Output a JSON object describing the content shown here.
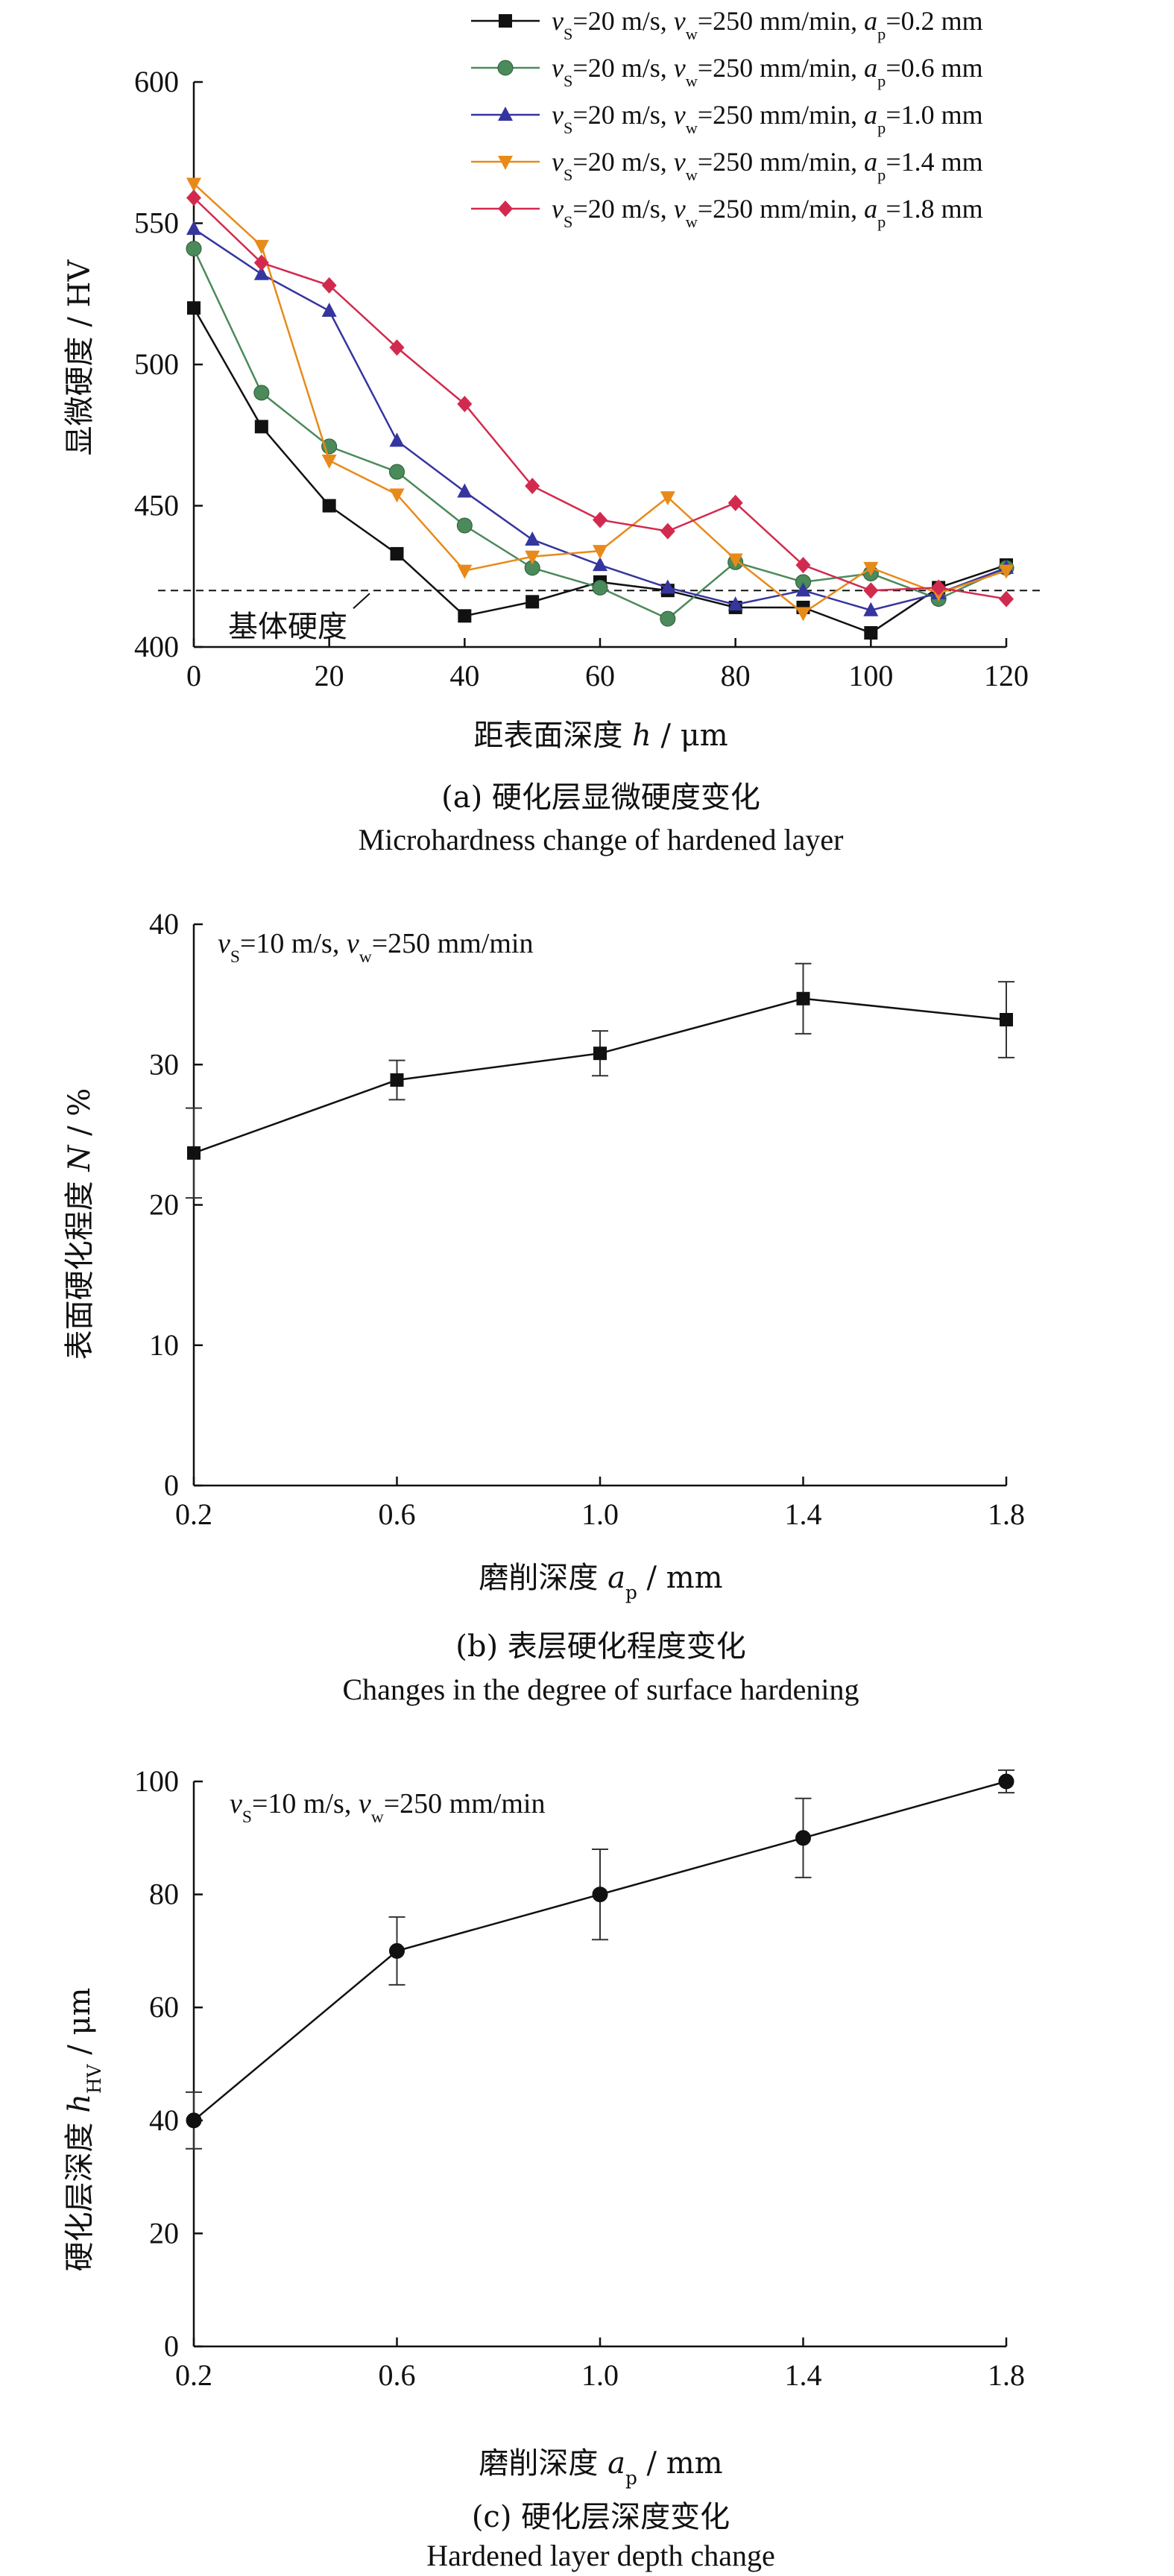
{
  "chart_data": [
    {
      "type": "line",
      "panel_caption_cn": "(a) 硬化层显微硬度变化",
      "panel_caption_en": "Microhardness change of hardened layer",
      "xlabel": "距表面深度 h / μm",
      "ylabel": "显微硬度 / HV",
      "xlim": [
        0,
        120
      ],
      "ylim": [
        400,
        600
      ],
      "xticks": [
        0,
        20,
        40,
        60,
        80,
        100,
        120
      ],
      "yticks": [
        400,
        450,
        500,
        550,
        600
      ],
      "x": [
        0,
        10,
        20,
        30,
        40,
        50,
        60,
        70,
        80,
        90,
        100,
        110,
        120
      ],
      "legend_position": "top-right",
      "reference_line": {
        "y": 420,
        "label": "基体硬度",
        "style": "dashed"
      },
      "series": [
        {
          "name": "vS=20 m/s, vw=250 mm/min, ap=0.2 mm",
          "color": "#111111",
          "marker": "square",
          "values": [
            520,
            478,
            450,
            433,
            411,
            416,
            423,
            420,
            414,
            414,
            405,
            421,
            429
          ]
        },
        {
          "name": "vS=20 m/s, vw=250 mm/min, ap=0.6 mm",
          "color": "#4b8a5a",
          "marker": "circle",
          "values": [
            541,
            490,
            471,
            462,
            443,
            428,
            421,
            410,
            430,
            423,
            426,
            417,
            428
          ]
        },
        {
          "name": "vS=20 m/s, vw=250 mm/min, ap=1.0 mm",
          "color": "#3535a0",
          "marker": "triangle-up",
          "values": [
            548,
            532,
            519,
            473,
            455,
            438,
            429,
            421,
            415,
            420,
            413,
            419,
            428
          ]
        },
        {
          "name": "vS=20 m/s, vw=250 mm/min, ap=1.4 mm",
          "color": "#e88a1a",
          "marker": "triangle-down",
          "values": [
            564,
            542,
            466,
            454,
            427,
            432,
            434,
            453,
            431,
            412,
            428,
            419,
            427
          ]
        },
        {
          "name": "vS=20 m/s, vw=250 mm/min, ap=1.8 mm",
          "color": "#d22a4e",
          "marker": "diamond",
          "values": [
            559,
            536,
            528,
            506,
            486,
            457,
            445,
            441,
            451,
            429,
            420,
            421,
            417
          ]
        }
      ]
    },
    {
      "type": "line",
      "panel_caption_cn": "(b) 表层硬化程度变化",
      "panel_caption_en": "Changes in the degree of surface hardening",
      "xlabel": "磨削深度 ap / mm",
      "ylabel": "表面硬化程度 N / %",
      "annotation": "vS=10 m/s, vw=250 mm/min",
      "xlim": [
        0.2,
        1.8
      ],
      "ylim": [
        0,
        40
      ],
      "xticks": [
        "0.2",
        "0.6",
        "1.0",
        "1.4",
        "1.8"
      ],
      "yticks": [
        0,
        10,
        20,
        30,
        40
      ],
      "x": [
        0.2,
        0.6,
        1.0,
        1.4,
        1.8
      ],
      "series": [
        {
          "name": "",
          "color": "#111111",
          "marker": "square",
          "values": [
            23.7,
            28.9,
            30.8,
            34.7,
            33.2
          ],
          "error": [
            3.2,
            1.4,
            1.6,
            2.5,
            2.7
          ]
        }
      ]
    },
    {
      "type": "line",
      "panel_caption_cn": "(c) 硬化层深度变化",
      "panel_caption_en": "Hardened layer depth change",
      "xlabel": "磨削深度 ap / mm",
      "ylabel": "硬化层深度 hHV / μm",
      "annotation": "vS=10 m/s, vw=250 mm/min",
      "xlim": [
        0.2,
        1.8
      ],
      "ylim": [
        0,
        100
      ],
      "xticks": [
        "0.2",
        "0.6",
        "1.0",
        "1.4",
        "1.8"
      ],
      "yticks": [
        0,
        20,
        40,
        60,
        80,
        100
      ],
      "x": [
        0.2,
        0.6,
        1.0,
        1.4,
        1.8
      ],
      "series": [
        {
          "name": "",
          "color": "#111111",
          "marker": "circle",
          "values": [
            40,
            70,
            80,
            90,
            100
          ],
          "error": [
            5,
            6,
            8,
            7,
            2
          ]
        }
      ]
    }
  ]
}
